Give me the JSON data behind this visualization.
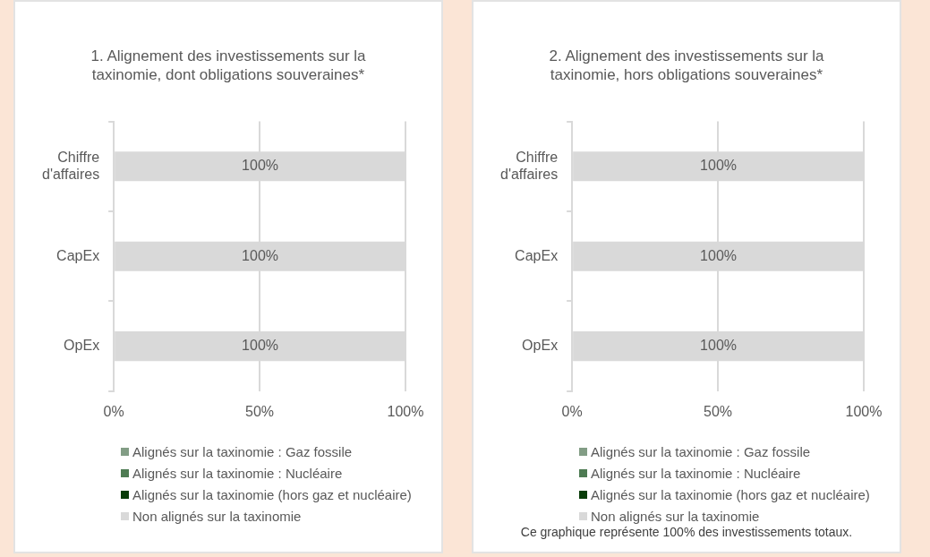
{
  "chart_data": [
    {
      "type": "bar",
      "orientation": "horizontal",
      "stacked": true,
      "title": "1. Alignement des investissements sur la taxinomie, dont obligations souveraines*",
      "categories": [
        "Chiffre d'affaires",
        "CapEx",
        "OpEx"
      ],
      "series": [
        {
          "name": "Alignés sur la taxinomie : Gaz fossile",
          "color": "#829d85",
          "values": [
            0,
            0,
            0
          ]
        },
        {
          "name": "Alignés sur la taxinomie : Nucléaire",
          "color": "#4e7b53",
          "values": [
            0,
            0,
            0
          ]
        },
        {
          "name": "Alignés sur la taxinomie (hors gaz et nucléaire)",
          "color": "#0a3d0a",
          "values": [
            0,
            0,
            0
          ]
        },
        {
          "name": "Non alignés sur la taxinomie",
          "color": "#d9d9d9",
          "values": [
            100,
            100,
            100
          ],
          "value_labels": [
            "100%",
            "100%",
            "100%"
          ]
        }
      ],
      "xlim": [
        0,
        100
      ],
      "xticks": [
        {
          "value": 0,
          "label": "0%"
        },
        {
          "value": 50,
          "label": "50%"
        },
        {
          "value": 100,
          "label": "100%"
        }
      ],
      "grid": "x",
      "legend": "bottom"
    },
    {
      "type": "bar",
      "orientation": "horizontal",
      "stacked": true,
      "title": "2. Alignement des investissements sur la taxinomie, hors obligations souveraines*",
      "categories": [
        "Chiffre d'affaires",
        "CapEx",
        "OpEx"
      ],
      "series": [
        {
          "name": "Alignés sur la taxinomie : Gaz fossile",
          "color": "#829d85",
          "values": [
            0,
            0,
            0
          ]
        },
        {
          "name": "Alignés sur la taxinomie : Nucléaire",
          "color": "#4e7b53",
          "values": [
            0,
            0,
            0
          ]
        },
        {
          "name": "Alignés sur la taxinomie (hors gaz et nucléaire)",
          "color": "#0a3d0a",
          "values": [
            0,
            0,
            0
          ]
        },
        {
          "name": "Non alignés sur la taxinomie",
          "color": "#d9d9d9",
          "values": [
            100,
            100,
            100
          ],
          "value_labels": [
            "100%",
            "100%",
            "100%"
          ]
        }
      ],
      "xlim": [
        0,
        100
      ],
      "xticks": [
        {
          "value": 0,
          "label": "0%"
        },
        {
          "value": 50,
          "label": "50%"
        },
        {
          "value": 100,
          "label": "100%"
        }
      ],
      "grid": "x",
      "legend": "bottom",
      "annotations": [
        "Ce graphique représente 100% des investissements totaux."
      ]
    }
  ]
}
